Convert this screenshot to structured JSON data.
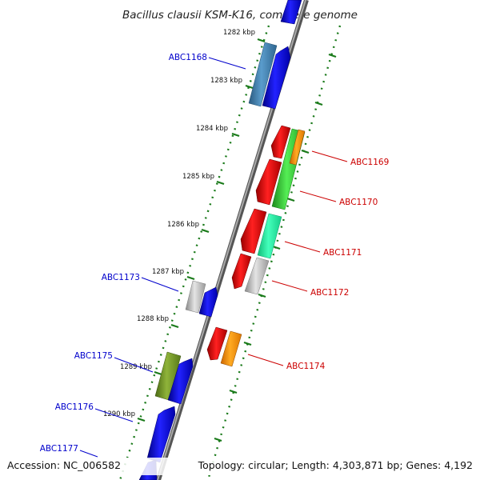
{
  "title": "Bacillus clausii KSM-K16, complete genome",
  "footer": {
    "accession": "Accession: NC_006582",
    "topology": "Topology: circular; Length: 4,303,871 bp; Genes: 4,192"
  },
  "colors": {
    "backbone": "#888888",
    "tick": "#1a7a1a",
    "forward_strand": "#0000ee",
    "reverse_strand": "#ee0000",
    "label_left": "#0000cc",
    "label_right": "#cc0000",
    "olive": "#6b8e23",
    "steelblue": "#4682b4",
    "green": "#33cc33",
    "aquamarine": "#22ffaa",
    "orange": "#ff9900",
    "silver": "#bbbbbb"
  },
  "kbp_ticks": [
    "1282 kbp",
    "1283 kbp",
    "1284 kbp",
    "1285 kbp",
    "1286 kbp",
    "1287 kbp",
    "1288 kbp",
    "1289 kbp",
    "1290 kbp"
  ],
  "gene_labels_left": [
    "ABC1168",
    "ABC1173",
    "ABC1175",
    "ABC1176",
    "ABC1177"
  ],
  "gene_labels_right": [
    "ABC1169",
    "ABC1170",
    "ABC1171",
    "ABC1172",
    "ABC1174"
  ]
}
